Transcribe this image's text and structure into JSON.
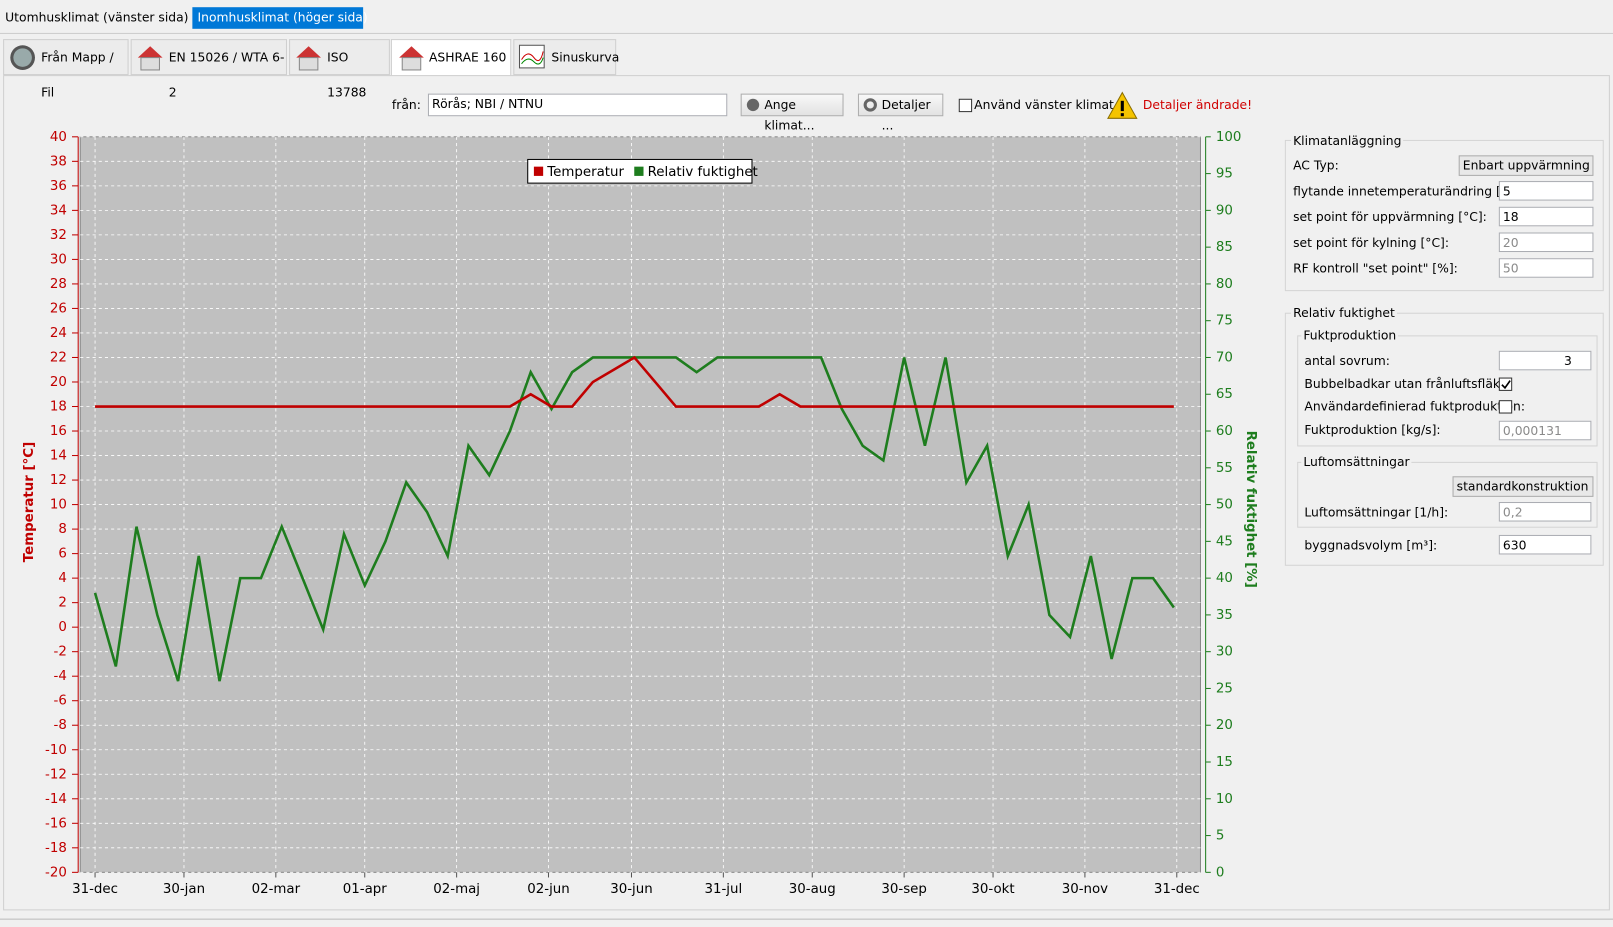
{
  "tabs": {
    "top": [
      "Utomhusklimat (vänster sida)",
      "Inomhusklimat (höger sida)"
    ],
    "source": [
      "Från Mapp / Fil",
      "EN 15026 / WTA 6-2",
      "ISO 13788",
      "ASHRAE 160",
      "Sinuskurva"
    ]
  },
  "toolbar": {
    "from_label": "från:",
    "from_value": "Rörås; NBI / NTNU",
    "climate_button": "Ange klimat...",
    "details_button": "Detaljer ...",
    "use_left_label": "Använd vänster klimat",
    "warning": "Detaljer ändrade!"
  },
  "panel": {
    "ac": {
      "title": "Klimatanläggning",
      "ac_type_label": "AC Typ:",
      "ac_type_value": "Enbart uppvärmning",
      "rows": [
        {
          "label": "flytande innetemperaturändring [°C]:",
          "value": "5"
        },
        {
          "label": "set point för uppvärmning  [°C]:",
          "value": "18"
        },
        {
          "label": "set point för kylning [°C]:",
          "value": "20"
        },
        {
          "label": "RF kontroll \"set point\" [%]:",
          "value": "50"
        }
      ]
    },
    "rh": {
      "title": "Relativ fuktighet",
      "production": {
        "title": "Fuktproduktion",
        "bedrooms_label": "antal sovrum:",
        "bedrooms_value": "3",
        "checks": [
          {
            "label": "Bubbelbadkar utan frånluftsfläkt:",
            "checked": true
          },
          {
            "label": "Användardefinierad fuktproduktion:",
            "checked": false
          }
        ],
        "rate_label": "Fuktproduktion [kg/s]:",
        "rate_value": "0,000131"
      },
      "ventilation": {
        "title": "Luftomsättningar",
        "type_value": "standardkonstruktion",
        "rate_label": "Luftomsättningar [1/h]:",
        "rate_value": "0,2"
      },
      "volume_label": "byggnadsvolym [m³]:",
      "volume_value": "630"
    }
  },
  "chart_data": {
    "type": "line",
    "y_label": "Temperatur [°C]",
    "y2_label": "Relativ fuktighet [%]",
    "grid": true,
    "legend": "top",
    "x": [
      0,
      7,
      14,
      21,
      28,
      35,
      42,
      49,
      56,
      63,
      70,
      77,
      84,
      91,
      98,
      105,
      112,
      119,
      126,
      133,
      140,
      147,
      154,
      161,
      168,
      175,
      182,
      189,
      196,
      203,
      210,
      217,
      224,
      231,
      238,
      245,
      252,
      259,
      266,
      273,
      280,
      287,
      294,
      301,
      308,
      315,
      322,
      329,
      336,
      343,
      350,
      357,
      364
    ],
    "xlim": [
      -5,
      373
    ],
    "xticks": [
      {
        "value": 0,
        "label": "31-dec"
      },
      {
        "value": 30,
        "label": "30-jan"
      },
      {
        "value": 61,
        "label": "02-mar"
      },
      {
        "value": 91,
        "label": "01-apr"
      },
      {
        "value": 122,
        "label": "02-maj"
      },
      {
        "value": 153,
        "label": "02-jun"
      },
      {
        "value": 181,
        "label": "30-jun"
      },
      {
        "value": 212,
        "label": "31-jul"
      },
      {
        "value": 242,
        "label": "30-aug"
      },
      {
        "value": 273,
        "label": "30-sep"
      },
      {
        "value": 303,
        "label": "30-okt"
      },
      {
        "value": 334,
        "label": "30-nov"
      },
      {
        "value": 365,
        "label": "31-dec"
      }
    ],
    "ylim": [
      -20,
      40
    ],
    "yticks": [
      -20,
      -18,
      -16,
      -14,
      -12,
      -10,
      -8,
      -6,
      -4,
      -2,
      0,
      2,
      4,
      6,
      8,
      10,
      12,
      14,
      16,
      18,
      20,
      22,
      24,
      26,
      28,
      30,
      32,
      34,
      36,
      38,
      40
    ],
    "y2lim": [
      0,
      100
    ],
    "y2ticks": [
      0,
      5,
      10,
      15,
      20,
      25,
      30,
      35,
      40,
      45,
      50,
      55,
      60,
      65,
      70,
      75,
      80,
      85,
      90,
      95,
      100
    ],
    "series": [
      {
        "name": "Temperatur",
        "color": "#c00000",
        "values": [
          18,
          18,
          18,
          18,
          18,
          18,
          18,
          18,
          18,
          18,
          18,
          18,
          18,
          18,
          18,
          18,
          18,
          18,
          18,
          18,
          18,
          19,
          18,
          18,
          20,
          21,
          22,
          20,
          18,
          18,
          18,
          18,
          18,
          19,
          18,
          18,
          18,
          18,
          18,
          18,
          18,
          18,
          18,
          18,
          18,
          18,
          18,
          18,
          18,
          18,
          18,
          18,
          18
        ]
      },
      {
        "name": "Relativ fuktighet",
        "color": "#1e7d1e",
        "axis": "y2",
        "values": [
          38,
          28,
          47,
          35,
          26,
          43,
          26,
          40,
          40,
          47,
          40,
          33,
          46,
          39,
          45,
          53,
          49,
          43,
          58,
          54,
          60,
          68,
          63,
          68,
          70,
          70,
          70,
          70,
          70,
          68,
          70,
          70,
          70,
          70,
          70,
          70,
          63,
          58,
          56,
          70,
          58,
          70,
          53,
          58,
          43,
          50,
          35,
          32,
          43,
          29,
          40,
          40,
          36
        ]
      }
    ]
  }
}
